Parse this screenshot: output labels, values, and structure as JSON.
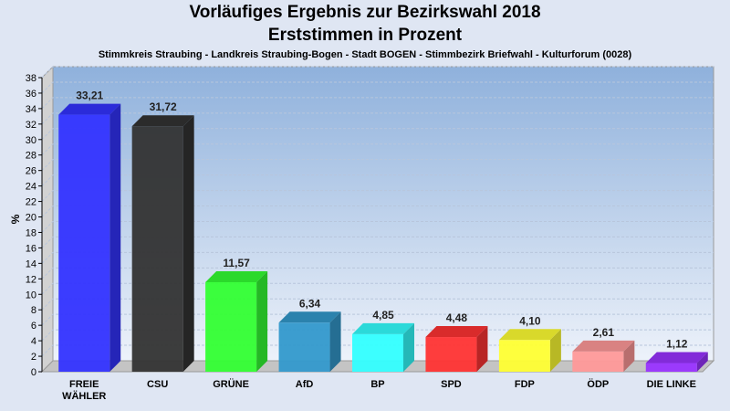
{
  "chart_data": {
    "type": "bar",
    "title": "Vorläufiges Ergebnis zur Bezirkswahl 2018",
    "subtitle": "Erststimmen in Prozent",
    "caption": "Stimmkreis Straubing - Landkreis Straubing-Bogen - Stadt BOGEN - Stimmbezirk Briefwahl - Kulturforum (0028)",
    "ylabel": "%",
    "xlabel": "",
    "ylim": [
      0,
      38
    ],
    "yticks": [
      0,
      2,
      4,
      6,
      8,
      10,
      12,
      14,
      16,
      18,
      20,
      22,
      24,
      26,
      28,
      30,
      32,
      34,
      36,
      38
    ],
    "grid": true,
    "categories": [
      "FREIE WÄHLER",
      "CSU",
      "GRÜNE",
      "AfD",
      "BP",
      "SPD",
      "FDP",
      "ÖDP",
      "DIE LINKE"
    ],
    "category_lines": [
      [
        "FREIE",
        "WÄHLER"
      ],
      [
        "CSU"
      ],
      [
        "GRÜNE"
      ],
      [
        "AfD"
      ],
      [
        "BP"
      ],
      [
        "SPD"
      ],
      [
        "FDP"
      ],
      [
        "ÖDP"
      ],
      [
        "DIE LINKE"
      ]
    ],
    "values": [
      33.21,
      31.72,
      11.57,
      6.34,
      4.85,
      4.48,
      4.1,
      2.61,
      1.12
    ],
    "value_labels": [
      "33,21",
      "31,72",
      "11,57",
      "6,34",
      "4,85",
      "4,48",
      "4,10",
      "2,61",
      "1,12"
    ],
    "colors": [
      "#3333ff",
      "#333333",
      "#33ff33",
      "#3399cc",
      "#33ffff",
      "#ff3333",
      "#ffff33",
      "#ff9999",
      "#9933ff"
    ]
  }
}
